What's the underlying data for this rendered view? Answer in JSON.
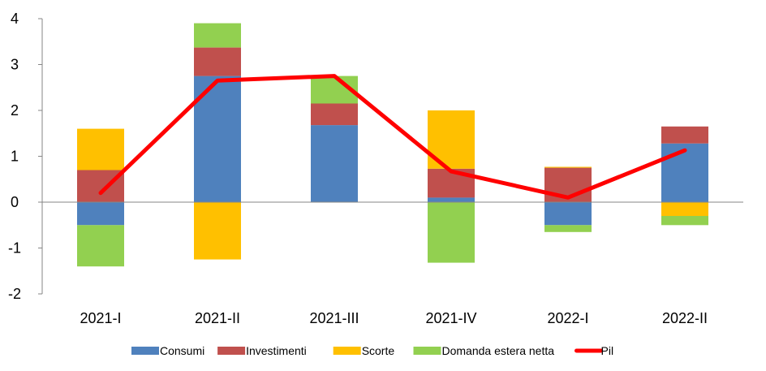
{
  "chart_data": {
    "type": "bar",
    "stacked": true,
    "categories": [
      "2021-I",
      "2021-II",
      "2021-III",
      "2021-IV",
      "2022-I",
      "2022-II"
    ],
    "ylim": [
      -2,
      4
    ],
    "yticks": [
      "-2",
      "-1",
      "0",
      "1",
      "2",
      "3",
      "4"
    ],
    "grid": false,
    "legend_position": "bottom",
    "series": [
      {
        "name": "Consumi",
        "kind": "bar",
        "color": "#4F81BD",
        "values": [
          -0.5,
          2.75,
          1.68,
          0.1,
          -0.5,
          1.28
        ]
      },
      {
        "name": "Investimenti",
        "kind": "bar",
        "color": "#C0504D",
        "values": [
          0.7,
          0.62,
          0.47,
          0.63,
          0.75,
          0.37
        ]
      },
      {
        "name": "Scorte",
        "kind": "bar",
        "color": "#FFC000",
        "values": [
          0.9,
          -1.25,
          0.0,
          1.27,
          0.02,
          -0.3
        ]
      },
      {
        "name": "Domanda estera netta",
        "kind": "bar",
        "color": "#92D050",
        "values": [
          -0.9,
          0.53,
          0.6,
          -1.32,
          -0.15,
          -0.2
        ]
      },
      {
        "name": "Pil",
        "kind": "line",
        "color": "#FF0000",
        "values": [
          0.2,
          2.65,
          2.75,
          0.67,
          0.1,
          1.13
        ]
      }
    ]
  }
}
